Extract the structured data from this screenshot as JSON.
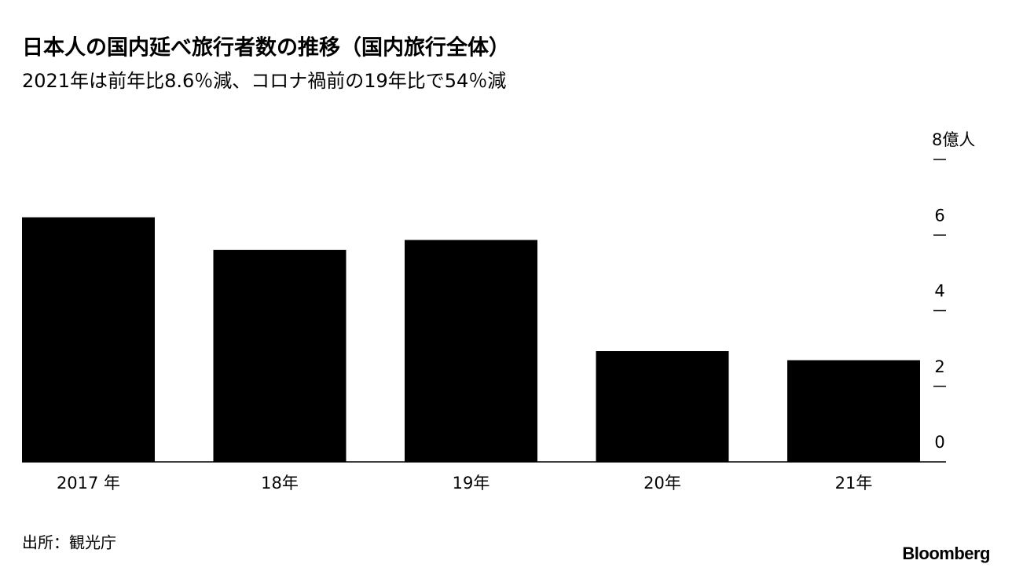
{
  "chart_data": {
    "type": "bar",
    "title": "日本人の国内延べ旅行者数の推移（国内旅行全体）",
    "subtitle": "2021年は前年比8.6％減、コロナ禍前の19年比で54％減",
    "categories": [
      "2017 年",
      "18年",
      "19年",
      "20年",
      "21年"
    ],
    "values": [
      6.47,
      5.61,
      5.87,
      2.93,
      2.69
    ],
    "color": "#000000",
    "ylim": [
      0,
      8
    ],
    "yticks": [
      0,
      2,
      4,
      6,
      {
        "value": 8,
        "label": "8億人"
      }
    ],
    "source": "出所：観光庁",
    "brand": "Bloomberg"
  }
}
